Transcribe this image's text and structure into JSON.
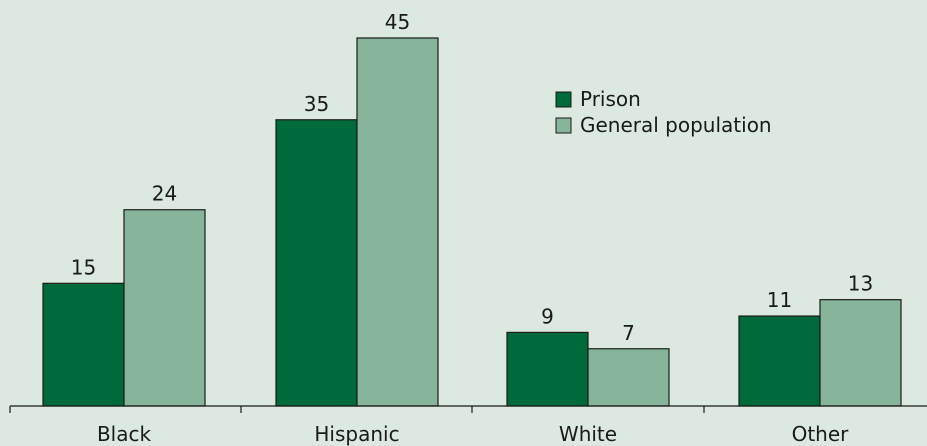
{
  "chart_data": {
    "type": "bar",
    "categories": [
      "Black",
      "Hispanic",
      "White",
      "Other"
    ],
    "series": [
      {
        "name": "Prison",
        "values": [
          15,
          35,
          9,
          11
        ],
        "color": "#006b3a"
      },
      {
        "name": "General population",
        "values": [
          24,
          45,
          7,
          13
        ],
        "color": "#86b59c"
      }
    ],
    "ylim": [
      0,
      45
    ],
    "grid": false,
    "legend_position": "top-right",
    "background": "#dce9e0",
    "bar_outline_color": "#1a1a1a"
  }
}
